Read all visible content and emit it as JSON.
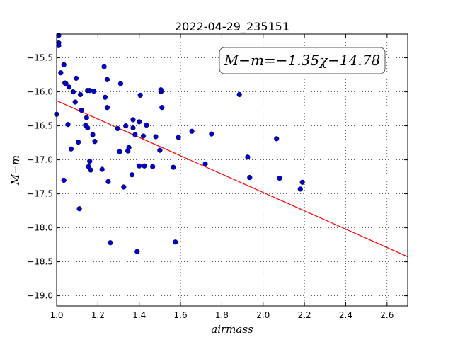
{
  "chart_data": {
    "type": "scatter",
    "title": "2022-04-29_235151",
    "xlabel": "airmass",
    "ylabel": "M−m",
    "xlim": [
      1.0,
      2.7
    ],
    "ylim": [
      -19.15,
      -15.15
    ],
    "xticks": [
      1.0,
      1.2,
      1.4,
      1.6,
      1.8,
      2.0,
      2.2,
      2.4,
      2.6
    ],
    "xtick_labels": [
      "1.0",
      "1.2",
      "1.4",
      "1.6",
      "1.8",
      "2.0",
      "2.2",
      "2.4",
      "2.6"
    ],
    "yticks": [
      -15.5,
      -16.0,
      -16.5,
      -17.0,
      -17.5,
      -18.0,
      -18.5,
      -19.0
    ],
    "ytick_labels": [
      "−15.5",
      "−16.0",
      "−16.5",
      "−17.0",
      "−17.5",
      "−18.0",
      "−18.5",
      "−19.0"
    ],
    "grid": true,
    "annotation": "M−m=−1.35χ−14.78",
    "fit": {
      "slope": -1.35,
      "intercept": -14.78,
      "color": "#ff0000"
    },
    "point_color": "#0000cc",
    "x": [
      1.01,
      1.01,
      1.01,
      1.02,
      1.035,
      1.04,
      1.035,
      1.045,
      1.06,
      1.055,
      1.07,
      1.08,
      1.09,
      1.095,
      1.105,
      1.11,
      1.115,
      1.12,
      1.14,
      1.15,
      1.145,
      1.15,
      1.155,
      1.165,
      1.16,
      1.16,
      1.175,
      1.18,
      1.185,
      1.22,
      1.23,
      1.235,
      1.245,
      1.25,
      1.245,
      1.26,
      1.295,
      1.305,
      1.31,
      1.325,
      1.335,
      1.345,
      1.35,
      1.365,
      1.37,
      1.37,
      1.38,
      1.39,
      1.4,
      1.4,
      1.405,
      1.42,
      1.425,
      1.435,
      1.465,
      1.48,
      1.5,
      1.505,
      1.505,
      1.51,
      1.565,
      1.575,
      1.59,
      1.655,
      1.72,
      1.75,
      1.885,
      1.925,
      1.935,
      2.065,
      2.08,
      2.18,
      2.19,
      1.0
    ],
    "y": [
      -15.17,
      -15.28,
      -15.32,
      -15.72,
      -15.6,
      -15.87,
      -17.3,
      -15.88,
      -15.93,
      -16.48,
      -16.84,
      -16.0,
      -16.15,
      -15.8,
      -16.74,
      -17.72,
      -16.04,
      -16.27,
      -16.49,
      -15.98,
      -16.38,
      -16.53,
      -17.1,
      -17.15,
      -15.98,
      -17.02,
      -16.63,
      -15.99,
      -16.73,
      -17.14,
      -15.63,
      -16.08,
      -15.82,
      -17.32,
      -16.23,
      -18.22,
      -16.54,
      -16.88,
      -15.88,
      -17.4,
      -16.5,
      -16.87,
      -16.82,
      -17.22,
      -16.41,
      -16.53,
      -16.63,
      -18.35,
      -17.09,
      -16.44,
      -16.05,
      -16.65,
      -17.09,
      -16.49,
      -17.1,
      -16.66,
      -16.86,
      -16.0,
      -15.97,
      -16.23,
      -17.11,
      -18.21,
      -16.67,
      -16.58,
      -17.06,
      -16.62,
      -16.04,
      -16.96,
      -17.26,
      -16.69,
      -17.27,
      -17.43,
      -17.33,
      -16.33
    ]
  }
}
